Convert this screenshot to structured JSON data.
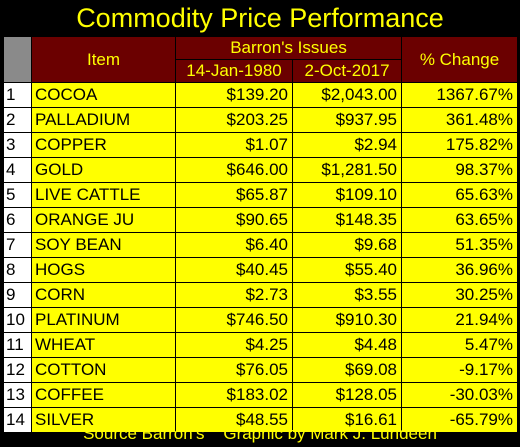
{
  "title": "Commodity Price Performance",
  "headers": {
    "item": "Item",
    "group": "Barron's Issues",
    "date1": "14-Jan-1980",
    "date2": "2-Oct-2017",
    "change": "% Change"
  },
  "rows": [
    {
      "n": "1",
      "item": "COCOA",
      "v1980": "$139.20",
      "v2017": "$2,043.00",
      "pct": "1367.67%"
    },
    {
      "n": "2",
      "item": "PALLADIUM",
      "v1980": "$203.25",
      "v2017": "$937.95",
      "pct": "361.48%"
    },
    {
      "n": "3",
      "item": "COPPER",
      "v1980": "$1.07",
      "v2017": "$2.94",
      "pct": "175.82%"
    },
    {
      "n": "4",
      "item": "GOLD",
      "v1980": "$646.00",
      "v2017": "$1,281.50",
      "pct": "98.37%"
    },
    {
      "n": "5",
      "item": "LIVE CATTLE",
      "v1980": "$65.87",
      "v2017": "$109.10",
      "pct": "65.63%"
    },
    {
      "n": "6",
      "item": "ORANGE JU",
      "v1980": "$90.65",
      "v2017": "$148.35",
      "pct": "63.65%"
    },
    {
      "n": "7",
      "item": "SOY BEAN",
      "v1980": "$6.40",
      "v2017": "$9.68",
      "pct": "51.35%"
    },
    {
      "n": "8",
      "item": "HOGS",
      "v1980": "$40.45",
      "v2017": "$55.40",
      "pct": "36.96%"
    },
    {
      "n": "9",
      "item": "CORN",
      "v1980": "$2.73",
      "v2017": "$3.55",
      "pct": "30.25%"
    },
    {
      "n": "10",
      "item": "PLATINUM",
      "v1980": "$746.50",
      "v2017": "$910.30",
      "pct": "21.94%"
    },
    {
      "n": "11",
      "item": "WHEAT",
      "v1980": "$4.25",
      "v2017": "$4.48",
      "pct": "5.47%"
    },
    {
      "n": "12",
      "item": "COTTON",
      "v1980": "$76.05",
      "v2017": "$69.08",
      "pct": "-9.17%"
    },
    {
      "n": "13",
      "item": "COFFEE",
      "v1980": "$183.02",
      "v2017": "$128.05",
      "pct": "-30.03%"
    },
    {
      "n": "14",
      "item": "SILVER",
      "v1980": "$48.55",
      "v2017": "$16.61",
      "pct": "-65.79%"
    }
  ],
  "footer": "Source Barron's    Graphic by Mark J. Lundeen",
  "colors": {
    "background": "#000000",
    "accent": "#ffff00",
    "header": "#6b0000",
    "cell": "#ffff00"
  }
}
